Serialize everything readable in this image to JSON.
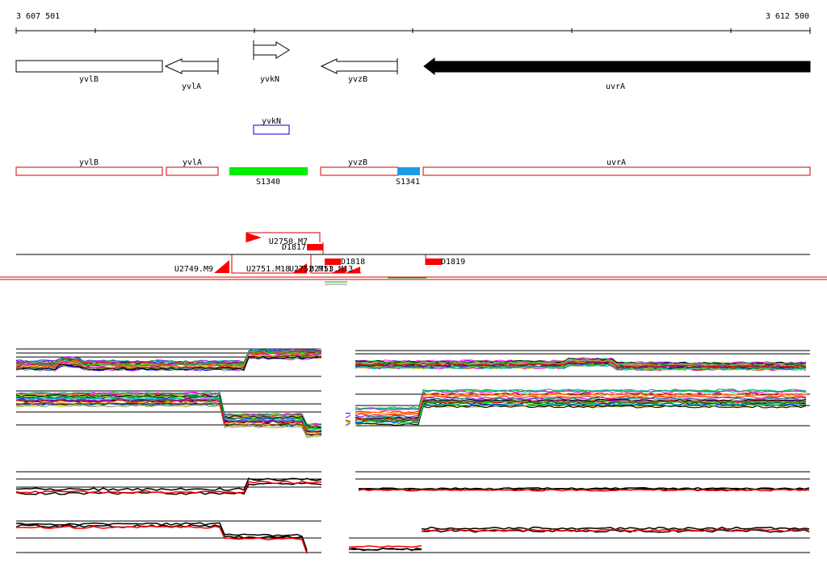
{
  "ruler": {
    "start_label": "3 607 501",
    "end_label": "3 612 500",
    "start": 3607501,
    "end": 3612500
  },
  "genes": [
    {
      "name": "yvlB",
      "strand": "none"
    },
    {
      "name": "yvlA",
      "strand": "-"
    },
    {
      "name": "yvkN",
      "strand": "+"
    },
    {
      "name": "yvzB",
      "strand": "-"
    },
    {
      "name": "uvrA",
      "strand": "-",
      "filled": true
    }
  ],
  "feature_track": {
    "label": "yvkN"
  },
  "operon_track": [
    {
      "name": "yvlB"
    },
    {
      "name": "yvlA"
    },
    {
      "name": "yvzB"
    },
    {
      "name": "uvrA"
    }
  ],
  "segments": [
    {
      "label": "S1340",
      "color": "#00ee00"
    },
    {
      "label": "S1341",
      "color": "#1e9be6"
    }
  ],
  "upshifts": [
    {
      "label": "U2749.M9"
    },
    {
      "label": "U2750.M7"
    },
    {
      "label": "U2751.M18"
    },
    {
      "label": "U2752.M11"
    },
    {
      "label": "U2753.M13"
    }
  ],
  "downshifts": [
    {
      "label": "D1817"
    },
    {
      "label": "D1818"
    },
    {
      "label": "D1819"
    }
  ],
  "colors": {
    "accent_red": "#ff0000",
    "gene_fill": "#000000",
    "feature_blue": "#0000cc"
  }
}
